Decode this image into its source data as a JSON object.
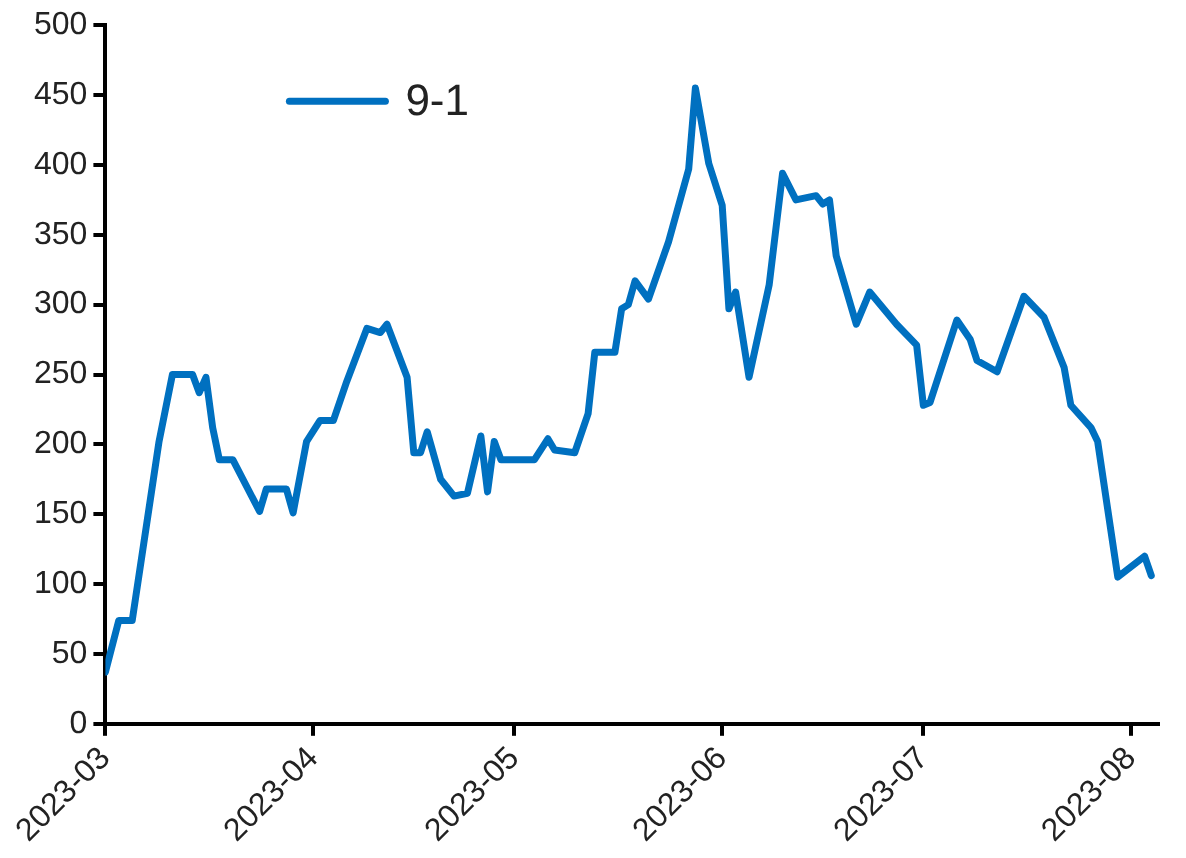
{
  "chart_data": {
    "type": "line",
    "legend": "top left",
    "grid": false,
    "marker": "none",
    "line_style": "solid",
    "xlim": [
      "2023-03-01",
      "2023-08-05"
    ],
    "xticks": [
      "2023-03",
      "2023-04",
      "2023-05",
      "2023-06",
      "2023-07",
      "2023-08"
    ],
    "ylim": [
      0,
      500
    ],
    "yticks": [
      0,
      50,
      100,
      150,
      200,
      250,
      300,
      350,
      400,
      450,
      500
    ],
    "x": [
      "2023-03-01",
      "2023-03-03",
      "2023-03-05",
      "2023-03-09",
      "2023-03-11",
      "2023-03-14",
      "2023-03-15",
      "2023-03-16",
      "2023-03-17",
      "2023-03-18",
      "2023-03-20",
      "2023-03-24",
      "2023-03-25",
      "2023-03-28",
      "2023-03-29",
      "2023-03-31",
      "2023-04-02",
      "2023-04-04",
      "2023-04-06",
      "2023-04-09",
      "2023-04-11",
      "2023-04-12",
      "2023-04-15",
      "2023-04-16",
      "2023-04-17",
      "2023-04-18",
      "2023-04-20",
      "2023-04-22",
      "2023-04-24",
      "2023-04-26",
      "2023-04-27",
      "2023-04-28",
      "2023-04-29",
      "2023-05-04",
      "2023-05-06",
      "2023-05-07",
      "2023-05-10",
      "2023-05-12",
      "2023-05-13",
      "2023-05-16",
      "2023-05-17",
      "2023-05-18",
      "2023-05-19",
      "2023-05-21",
      "2023-05-24",
      "2023-05-27",
      "2023-05-28",
      "2023-05-30",
      "2023-06-01",
      "2023-06-02",
      "2023-06-03",
      "2023-06-05",
      "2023-06-08",
      "2023-06-10",
      "2023-06-12",
      "2023-06-15",
      "2023-06-16",
      "2023-06-17",
      "2023-06-18",
      "2023-06-21",
      "2023-06-23",
      "2023-06-27",
      "2023-06-30",
      "2023-07-01",
      "2023-07-02",
      "2023-07-06",
      "2023-07-08",
      "2023-07-09",
      "2023-07-12",
      "2023-07-16",
      "2023-07-19",
      "2023-07-22",
      "2023-07-23",
      "2023-07-26",
      "2023-07-27",
      "2023-07-30",
      "2023-08-03",
      "2023-08-04"
    ],
    "series": [
      {
        "name": "9-1",
        "color": "#0070c0",
        "values": [
          37,
          74,
          74,
          202,
          250,
          250,
          237,
          248,
          212,
          189,
          189,
          152,
          168,
          168,
          151,
          202,
          217,
          217,
          245,
          283,
          280,
          286,
          248,
          194,
          194,
          209,
          175,
          163,
          165,
          206,
          166,
          202,
          189,
          189,
          204,
          196,
          194,
          222,
          266,
          266,
          297,
          300,
          317,
          304,
          345,
          397,
          455,
          401,
          371,
          297,
          309,
          248,
          314,
          394,
          375,
          378,
          372,
          375,
          335,
          286,
          309,
          286,
          271,
          228,
          230,
          289,
          275,
          260,
          252,
          306,
          291,
          255,
          228,
          212,
          202,
          105,
          120,
          106
        ]
      }
    ]
  }
}
